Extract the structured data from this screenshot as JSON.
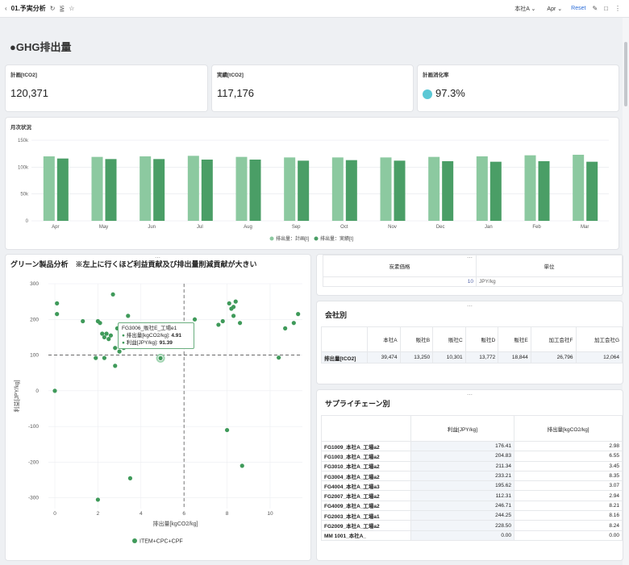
{
  "topbar": {
    "back_icon": "chevron-left-icon",
    "title": "01.予実分析",
    "company_select": "本社A",
    "month_select": "Apr",
    "reset": "Reset"
  },
  "header": {
    "title": "●GHG排出量"
  },
  "kpis": [
    {
      "label": "計画[tCO2]",
      "value": "120,371"
    },
    {
      "label": "実績[tCO2]",
      "value": "117,176"
    },
    {
      "label": "計画消化率",
      "value": "97.3%"
    }
  ],
  "monthly_chart": {
    "title": "月次状況",
    "chart_data": {
      "type": "bar",
      "categories": [
        "Apr",
        "May",
        "Jun",
        "Jul",
        "Aug",
        "Sep",
        "Oct",
        "Nov",
        "Dec",
        "Jan",
        "Feb",
        "Mar"
      ],
      "series": [
        {
          "name": "排出量：計画[t]",
          "values": [
            120000,
            119000,
            120000,
            121000,
            119000,
            118000,
            118000,
            118000,
            119000,
            120000,
            122000,
            123000
          ]
        },
        {
          "name": "排出量：実績[t]",
          "values": [
            116000,
            115000,
            115000,
            114000,
            114000,
            112000,
            113000,
            112000,
            111000,
            110000,
            111000,
            110000
          ]
        }
      ],
      "colors": [
        "#8cc9a0",
        "#4a9e66"
      ],
      "ylim": [
        0,
        150000
      ],
      "yticks": [
        "0",
        "50k",
        "100k",
        "150k"
      ],
      "grid": true,
      "legend": "bottom"
    }
  },
  "scatter": {
    "title": "グリーン製品分析　※左上に行くほど利益貢献及び排出量削減貢献が大きい",
    "xlabel": "排出量[kgCO2/kg]",
    "ylabel": "利益[JPY/kg]",
    "legend": "ITEM+CPC+CPF",
    "tooltip": {
      "title": "FG3006_販社E_工場e1",
      "line1_label": "排出量[kgCO2/kg]:",
      "line1_value": "4.91",
      "line2_label": "利益[JPY/kg]:",
      "line2_value": "91.39"
    },
    "chart_data": {
      "type": "scatter",
      "xlim": [
        -0.3,
        11.5
      ],
      "ylim": [
        -330,
        300
      ],
      "xticks": [
        0,
        2,
        4,
        6,
        8,
        10
      ],
      "yticks": [
        300,
        200,
        100,
        0,
        -100,
        -200,
        -300
      ],
      "ref_x": 6,
      "ref_y": 100,
      "color": "#3f9a5a",
      "points": [
        [
          0.0,
          0
        ],
        [
          0.1,
          245
        ],
        [
          0.1,
          215
        ],
        [
          1.3,
          195
        ],
        [
          1.9,
          92
        ],
        [
          2.0,
          195
        ],
        [
          2.0,
          -305
        ],
        [
          2.1,
          190
        ],
        [
          2.2,
          160
        ],
        [
          2.3,
          150
        ],
        [
          2.3,
          92
        ],
        [
          2.4,
          160
        ],
        [
          2.5,
          145
        ],
        [
          2.6,
          155
        ],
        [
          2.7,
          270
        ],
        [
          2.8,
          70
        ],
        [
          2.8,
          120
        ],
        [
          2.9,
          175
        ],
        [
          3.0,
          110
        ],
        [
          3.2,
          120
        ],
        [
          3.4,
          210
        ],
        [
          3.5,
          -245
        ],
        [
          4.91,
          91.39
        ],
        [
          5.2,
          140
        ],
        [
          6.5,
          200
        ],
        [
          7.6,
          185
        ],
        [
          7.8,
          195
        ],
        [
          8.0,
          -110
        ],
        [
          8.1,
          245
        ],
        [
          8.2,
          230
        ],
        [
          8.3,
          235
        ],
        [
          8.3,
          210
        ],
        [
          8.4,
          250
        ],
        [
          8.6,
          190
        ],
        [
          8.7,
          -210
        ],
        [
          10.4,
          93
        ],
        [
          10.7,
          175
        ],
        [
          11.1,
          190
        ],
        [
          11.3,
          215
        ]
      ]
    }
  },
  "carbon": {
    "headers": [
      "炭素価格",
      "単位"
    ],
    "value": "10",
    "unit": "JPY/kg"
  },
  "company": {
    "title": "会社別",
    "headers": [
      "本社A",
      "販社B",
      "販社C",
      "販社D",
      "販社E",
      "加工会社F",
      "加工会社G"
    ],
    "row_label": "排出量[tCO2]",
    "values": [
      "39,474",
      "13,250",
      "10,301",
      "13,772",
      "18,844",
      "26,796",
      "12,064"
    ]
  },
  "supply": {
    "title": "サプライチェーン別",
    "headers": [
      "利益[JPY/kg]",
      "排出量[kgCO2/kg]"
    ],
    "rows": [
      {
        "name": "FG1009_本社A_工場a2",
        "profit": "176.41",
        "emission": "2.98"
      },
      {
        "name": "FG1003_本社A_工場a2",
        "profit": "204.83",
        "emission": "6.55"
      },
      {
        "name": "FG3010_本社A_工場a2",
        "profit": "211.34",
        "emission": "3.45"
      },
      {
        "name": "FG3004_本社A_工場a2",
        "profit": "233.21",
        "emission": "8.35"
      },
      {
        "name": "FG4004_本社A_工場a3",
        "profit": "195.62",
        "emission": "3.07"
      },
      {
        "name": "FG2007_本社A_工場a2",
        "profit": "112.31",
        "emission": "2.94"
      },
      {
        "name": "FG4009_本社A_工場a2",
        "profit": "246.71",
        "emission": "8.21"
      },
      {
        "name": "FG2003_本社A_工場a1",
        "profit": "244.25",
        "emission": "8.16"
      },
      {
        "name": "FG2009_本社A_工場a2",
        "profit": "228.50",
        "emission": "8.24"
      },
      {
        "name": "MM 1001_本社A_",
        "profit": "0.00",
        "emission": "0.00"
      }
    ]
  }
}
